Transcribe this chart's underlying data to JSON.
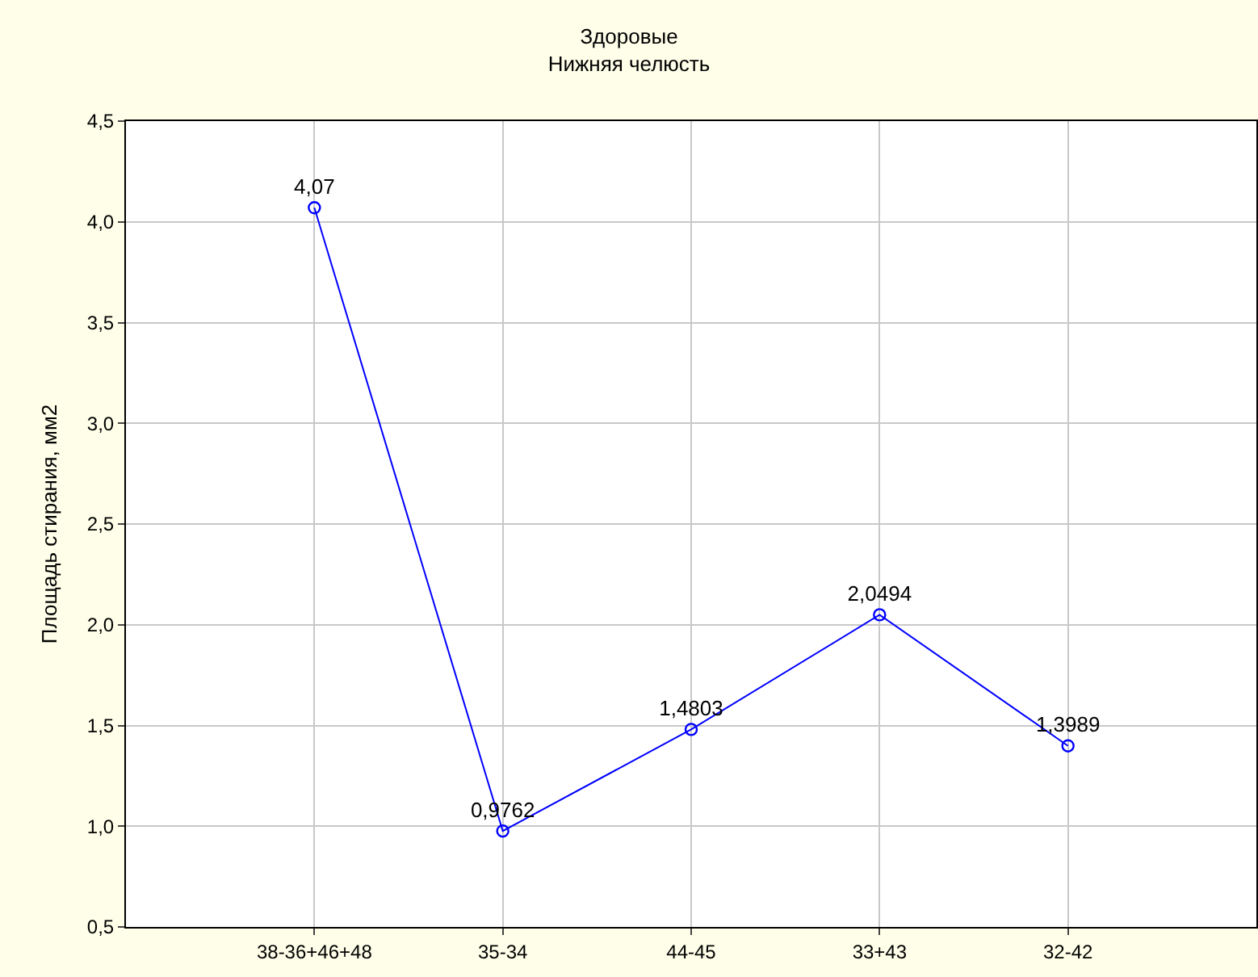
{
  "chart_data": {
    "type": "line",
    "title": "Здоровые",
    "subtitle": "Нижняя челюсть",
    "ylabel": "Площадь стирания, мм2",
    "categories": [
      "38-36+46+48",
      "35-34",
      "44-45",
      "33+43",
      "32-42"
    ],
    "series": [
      {
        "color": "#0000ff",
        "values": [
          4.07,
          0.9762,
          1.4803,
          2.0494,
          1.3989
        ],
        "value_labels": [
          "4,07",
          "0,9762",
          "1,4803",
          "2,0494",
          "1,3989"
        ]
      }
    ],
    "ylim": [
      0.5,
      4.5
    ],
    "yticks": [
      {
        "value": 0.5,
        "label": "0,5"
      },
      {
        "value": 1.0,
        "label": "1,0"
      },
      {
        "value": 1.5,
        "label": "1,5"
      },
      {
        "value": 2.0,
        "label": "2,0"
      },
      {
        "value": 2.5,
        "label": "2,5"
      },
      {
        "value": 3.0,
        "label": "3,0"
      },
      {
        "value": 3.5,
        "label": "3,5"
      },
      {
        "value": 4.0,
        "label": "4,0"
      },
      {
        "value": 4.5,
        "label": "4,5"
      }
    ],
    "grid": true,
    "marker": "circle",
    "line_style": "solid"
  }
}
